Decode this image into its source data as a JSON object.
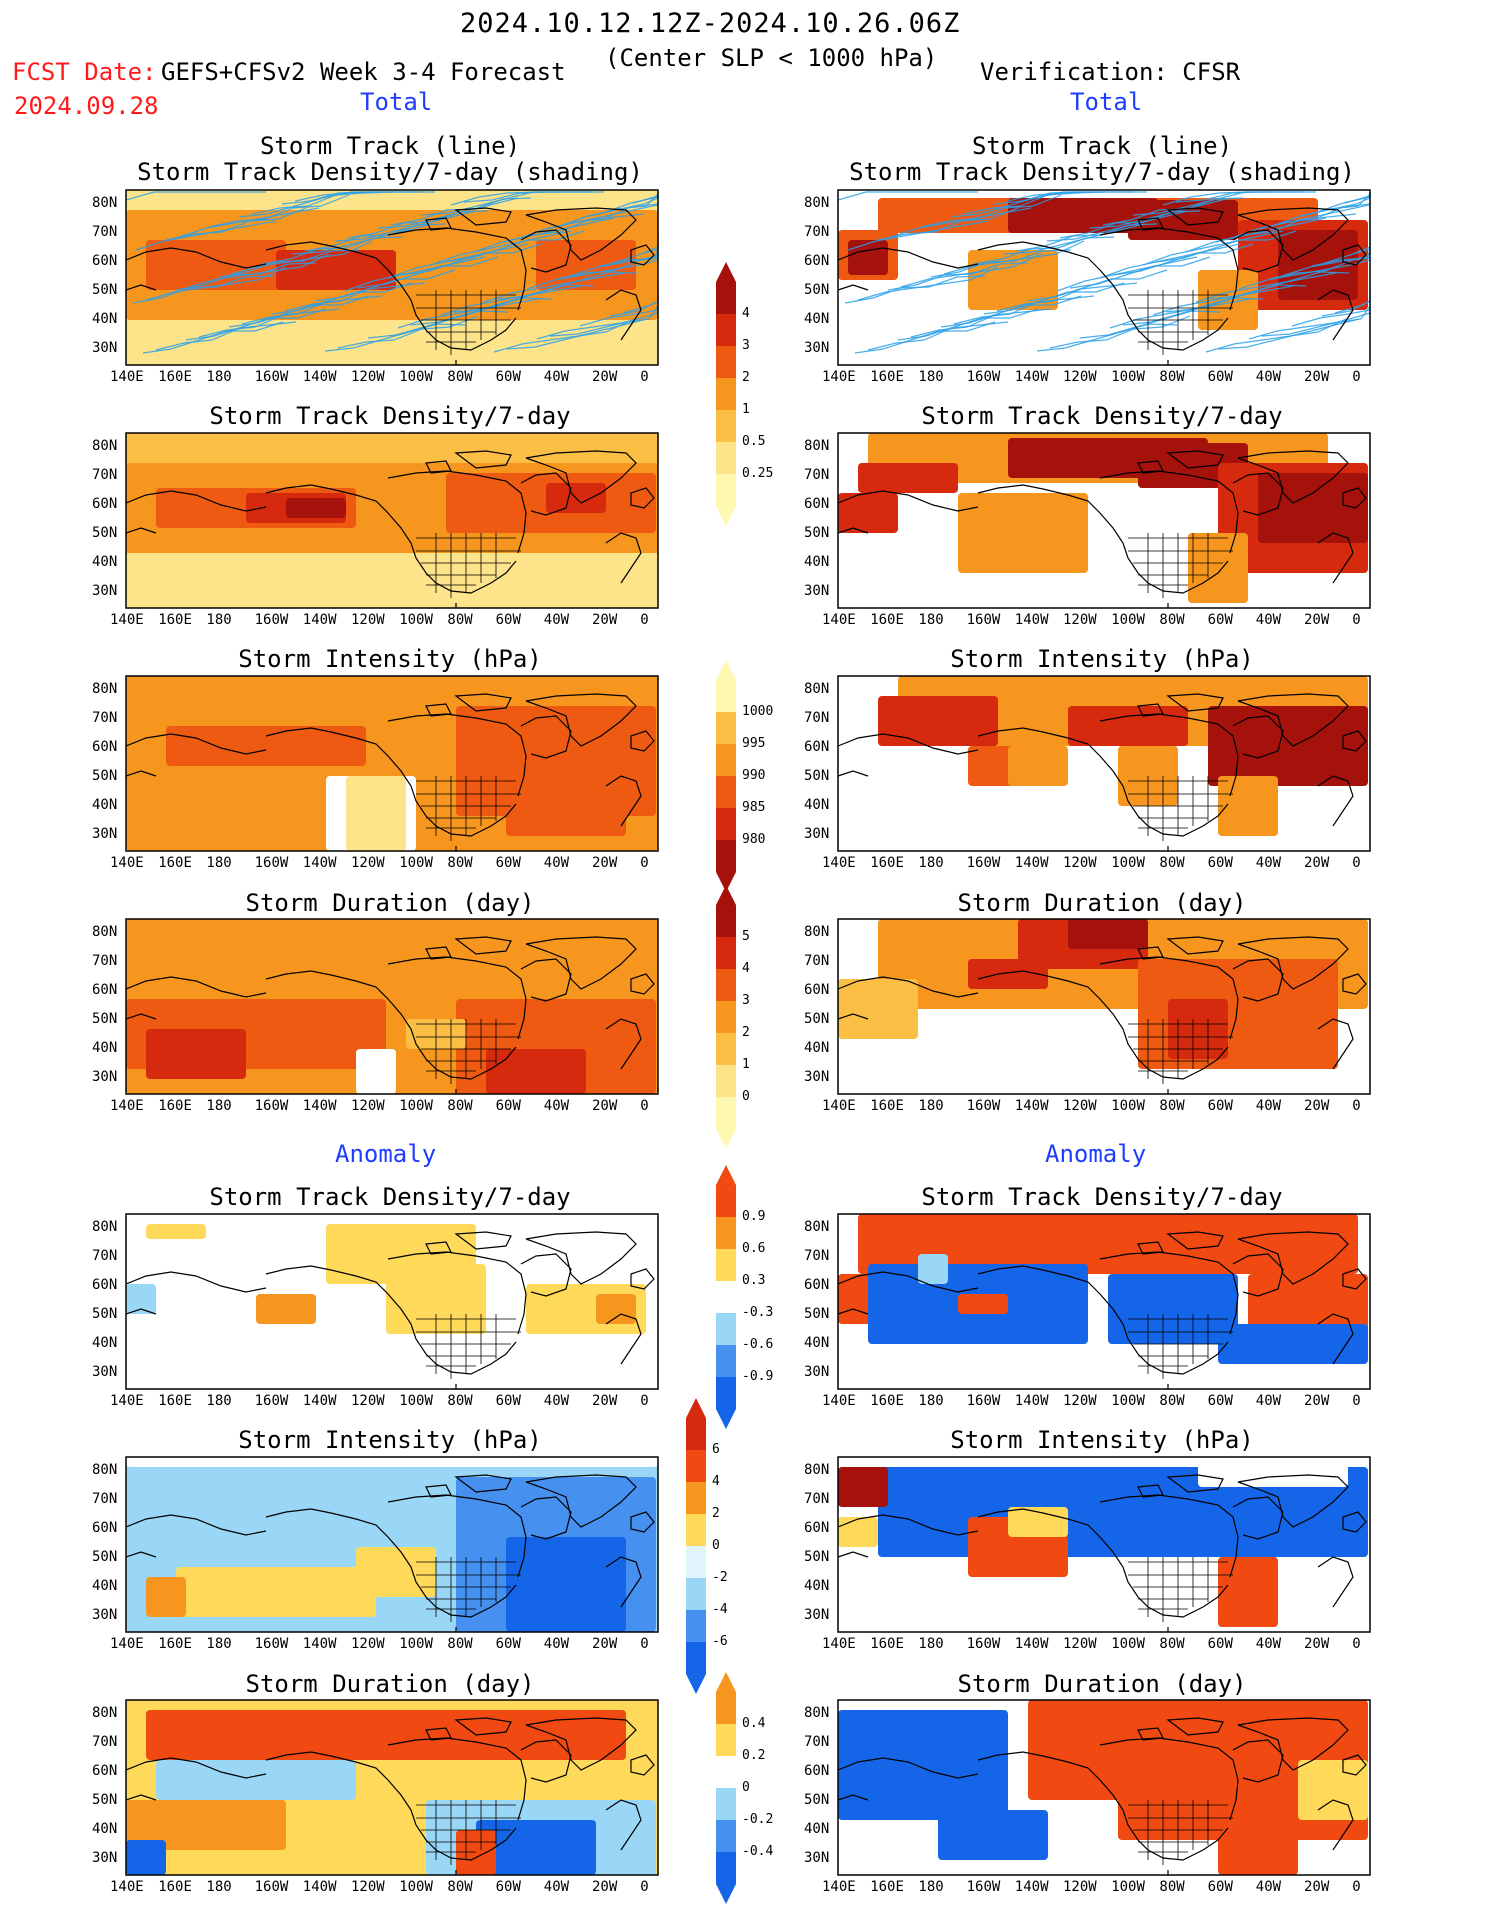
{
  "header": {
    "date_range": "2024.10.12.12Z-2024.10.26.06Z",
    "subtitle": "(Center SLP < 1000 hPa)",
    "fcst_label": "FCST Date:",
    "fcst_date": "2024.09.28",
    "model": "GEFS+CFSv2 Week 3-4 Forecast",
    "verification": "Verification: CFSR"
  },
  "sections": {
    "total": "Total",
    "anomaly": "Anomaly"
  },
  "panel_titles": {
    "track_line": "Storm Track (line)",
    "track_density_shading": "Storm Track Density/7-day (shading)",
    "track_density": "Storm Track Density/7-day",
    "intensity": "Storm Intensity (hPa)",
    "duration": "Storm Duration (day)"
  },
  "axes": {
    "lat_ticks": [
      "80N",
      "70N",
      "60N",
      "50N",
      "40N",
      "30N"
    ],
    "lon_ticks": [
      "140E",
      "160E",
      "180",
      "160W",
      "140W",
      "120W",
      "100W",
      "80W",
      "60W",
      "40W",
      "20W",
      "0"
    ]
  },
  "colorbars": {
    "density_total": [
      "4",
      "3",
      "2",
      "1",
      "0.5",
      "0.25"
    ],
    "intensity_total": [
      "1000",
      "995",
      "990",
      "985",
      "980"
    ],
    "duration_total": [
      "5",
      "4",
      "3",
      "2",
      "1",
      "0"
    ],
    "density_anom": [
      "0.9",
      "0.6",
      "0.3",
      "-0.3",
      "-0.6",
      "-0.9"
    ],
    "intensity_anom": [
      "6",
      "4",
      "2",
      "0",
      "-2",
      "-4",
      "-6"
    ],
    "duration_anom": [
      "0.4",
      "0.2",
      "0",
      "-0.2",
      "-0.4"
    ]
  },
  "colors": {
    "total_scale": [
      "#fff8b0",
      "#fde38a",
      "#fbbf45",
      "#f7961e",
      "#ee5a12",
      "#d62a0e",
      "#a5110b"
    ],
    "anom_scale": [
      "#1565e8",
      "#4690f0",
      "#9ad6f5",
      "#ffffff",
      "#ffd95a",
      "#f7961e",
      "#f04a12"
    ],
    "track_line": "#2aa0e8",
    "red_text": "#ff1a1a",
    "blue_text": "#1f3cff"
  }
}
